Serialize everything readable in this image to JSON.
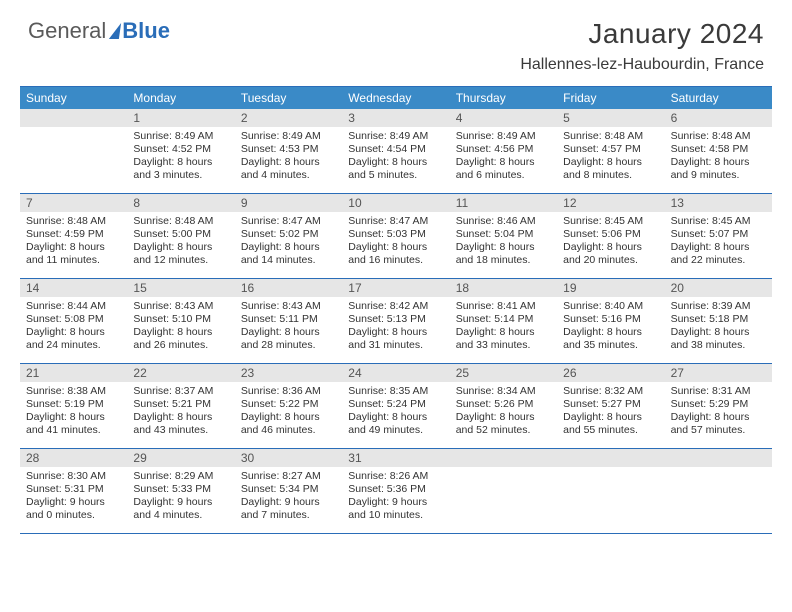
{
  "brand": {
    "word1": "General",
    "word2": "Blue"
  },
  "title": "January 2024",
  "location": "Hallennes-lez-Haubourdin, France",
  "colors": {
    "accent": "#2a6db8",
    "header_bg": "#3a8ac7",
    "header_text": "#ffffff",
    "daynum_bg": "#e6e6e6",
    "daynum_text": "#555555",
    "body_text": "#333333",
    "rule": "#2a6db8"
  },
  "days_of_week": [
    "Sunday",
    "Monday",
    "Tuesday",
    "Wednesday",
    "Thursday",
    "Friday",
    "Saturday"
  ],
  "start_offset": 1,
  "cells": [
    {
      "n": 1,
      "sunrise": "8:49 AM",
      "sunset": "4:52 PM",
      "daylight": "8 hours and 3 minutes."
    },
    {
      "n": 2,
      "sunrise": "8:49 AM",
      "sunset": "4:53 PM",
      "daylight": "8 hours and 4 minutes."
    },
    {
      "n": 3,
      "sunrise": "8:49 AM",
      "sunset": "4:54 PM",
      "daylight": "8 hours and 5 minutes."
    },
    {
      "n": 4,
      "sunrise": "8:49 AM",
      "sunset": "4:56 PM",
      "daylight": "8 hours and 6 minutes."
    },
    {
      "n": 5,
      "sunrise": "8:48 AM",
      "sunset": "4:57 PM",
      "daylight": "8 hours and 8 minutes."
    },
    {
      "n": 6,
      "sunrise": "8:48 AM",
      "sunset": "4:58 PM",
      "daylight": "8 hours and 9 minutes."
    },
    {
      "n": 7,
      "sunrise": "8:48 AM",
      "sunset": "4:59 PM",
      "daylight": "8 hours and 11 minutes."
    },
    {
      "n": 8,
      "sunrise": "8:48 AM",
      "sunset": "5:00 PM",
      "daylight": "8 hours and 12 minutes."
    },
    {
      "n": 9,
      "sunrise": "8:47 AM",
      "sunset": "5:02 PM",
      "daylight": "8 hours and 14 minutes."
    },
    {
      "n": 10,
      "sunrise": "8:47 AM",
      "sunset": "5:03 PM",
      "daylight": "8 hours and 16 minutes."
    },
    {
      "n": 11,
      "sunrise": "8:46 AM",
      "sunset": "5:04 PM",
      "daylight": "8 hours and 18 minutes."
    },
    {
      "n": 12,
      "sunrise": "8:45 AM",
      "sunset": "5:06 PM",
      "daylight": "8 hours and 20 minutes."
    },
    {
      "n": 13,
      "sunrise": "8:45 AM",
      "sunset": "5:07 PM",
      "daylight": "8 hours and 22 minutes."
    },
    {
      "n": 14,
      "sunrise": "8:44 AM",
      "sunset": "5:08 PM",
      "daylight": "8 hours and 24 minutes."
    },
    {
      "n": 15,
      "sunrise": "8:43 AM",
      "sunset": "5:10 PM",
      "daylight": "8 hours and 26 minutes."
    },
    {
      "n": 16,
      "sunrise": "8:43 AM",
      "sunset": "5:11 PM",
      "daylight": "8 hours and 28 minutes."
    },
    {
      "n": 17,
      "sunrise": "8:42 AM",
      "sunset": "5:13 PM",
      "daylight": "8 hours and 31 minutes."
    },
    {
      "n": 18,
      "sunrise": "8:41 AM",
      "sunset": "5:14 PM",
      "daylight": "8 hours and 33 minutes."
    },
    {
      "n": 19,
      "sunrise": "8:40 AM",
      "sunset": "5:16 PM",
      "daylight": "8 hours and 35 minutes."
    },
    {
      "n": 20,
      "sunrise": "8:39 AM",
      "sunset": "5:18 PM",
      "daylight": "8 hours and 38 minutes."
    },
    {
      "n": 21,
      "sunrise": "8:38 AM",
      "sunset": "5:19 PM",
      "daylight": "8 hours and 41 minutes."
    },
    {
      "n": 22,
      "sunrise": "8:37 AM",
      "sunset": "5:21 PM",
      "daylight": "8 hours and 43 minutes."
    },
    {
      "n": 23,
      "sunrise": "8:36 AM",
      "sunset": "5:22 PM",
      "daylight": "8 hours and 46 minutes."
    },
    {
      "n": 24,
      "sunrise": "8:35 AM",
      "sunset": "5:24 PM",
      "daylight": "8 hours and 49 minutes."
    },
    {
      "n": 25,
      "sunrise": "8:34 AM",
      "sunset": "5:26 PM",
      "daylight": "8 hours and 52 minutes."
    },
    {
      "n": 26,
      "sunrise": "8:32 AM",
      "sunset": "5:27 PM",
      "daylight": "8 hours and 55 minutes."
    },
    {
      "n": 27,
      "sunrise": "8:31 AM",
      "sunset": "5:29 PM",
      "daylight": "8 hours and 57 minutes."
    },
    {
      "n": 28,
      "sunrise": "8:30 AM",
      "sunset": "5:31 PM",
      "daylight": "9 hours and 0 minutes."
    },
    {
      "n": 29,
      "sunrise": "8:29 AM",
      "sunset": "5:33 PM",
      "daylight": "9 hours and 4 minutes."
    },
    {
      "n": 30,
      "sunrise": "8:27 AM",
      "sunset": "5:34 PM",
      "daylight": "9 hours and 7 minutes."
    },
    {
      "n": 31,
      "sunrise": "8:26 AM",
      "sunset": "5:36 PM",
      "daylight": "9 hours and 10 minutes."
    }
  ],
  "labels": {
    "sunrise": "Sunrise:",
    "sunset": "Sunset:",
    "daylight": "Daylight:"
  }
}
